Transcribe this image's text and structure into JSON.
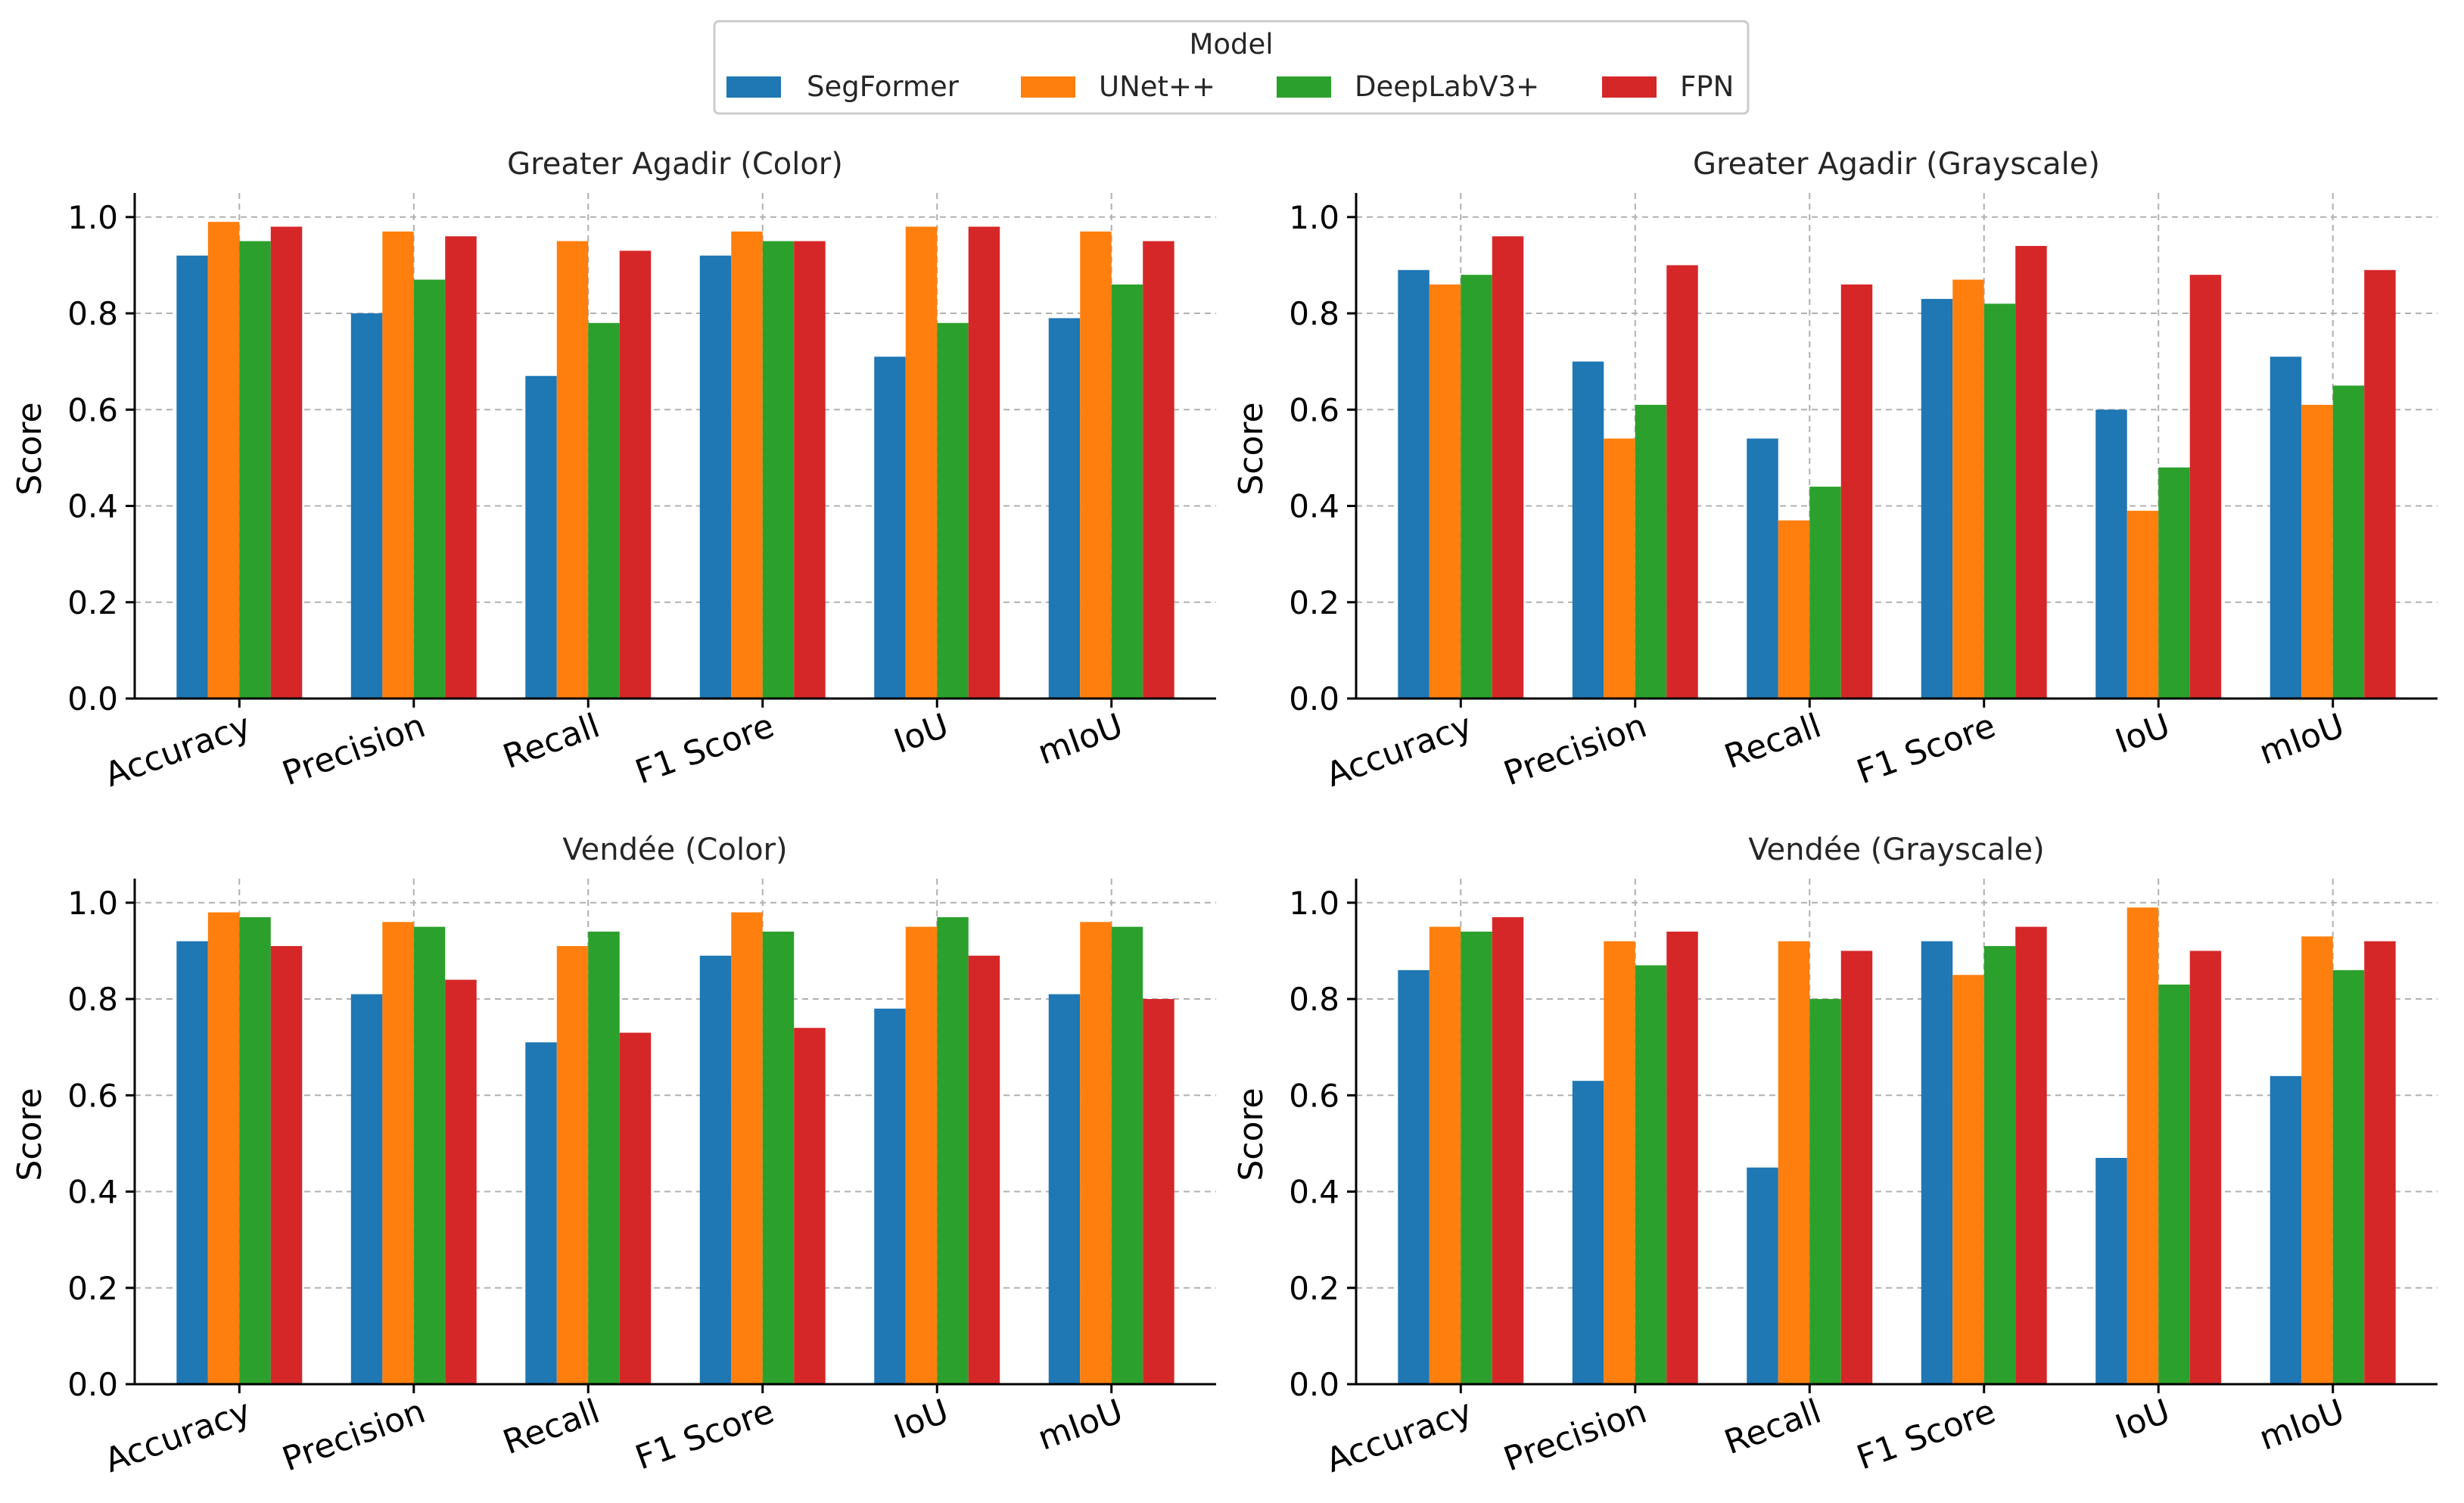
{
  "legend": {
    "title": "Model",
    "placement": "top-center",
    "series": [
      {
        "name": "SegFormer",
        "color": "#1f77b4"
      },
      {
        "name": "UNet++",
        "color": "#ff7f0e"
      },
      {
        "name": "DeepLabV3+",
        "color": "#2ca02c"
      },
      {
        "name": "FPN",
        "color": "#d62728"
      }
    ]
  },
  "chart_data": [
    {
      "type": "bar",
      "title": "Greater Agadir (Color)",
      "xlabel": "",
      "ylabel": "Score",
      "ylim": [
        0,
        1.05
      ],
      "yticks": [
        "0.0",
        "0.2",
        "0.4",
        "0.6",
        "0.8",
        "1.0"
      ],
      "grid": true,
      "categories": [
        "Accuracy",
        "Precision",
        "Recall",
        "F1 Score",
        "IoU",
        "mIoU"
      ],
      "series": [
        {
          "name": "SegFormer",
          "values": [
            0.92,
            0.8,
            0.67,
            0.92,
            0.71,
            0.79
          ]
        },
        {
          "name": "UNet++",
          "values": [
            0.99,
            0.97,
            0.95,
            0.97,
            0.98,
            0.97
          ]
        },
        {
          "name": "DeepLabV3+",
          "values": [
            0.95,
            0.87,
            0.78,
            0.95,
            0.78,
            0.86
          ]
        },
        {
          "name": "FPN",
          "values": [
            0.98,
            0.96,
            0.93,
            0.95,
            0.98,
            0.95
          ]
        }
      ]
    },
    {
      "type": "bar",
      "title": "Greater Agadir (Grayscale)",
      "xlabel": "",
      "ylabel": "Score",
      "ylim": [
        0,
        1.05
      ],
      "yticks": [
        "0.0",
        "0.2",
        "0.4",
        "0.6",
        "0.8",
        "1.0"
      ],
      "grid": true,
      "categories": [
        "Accuracy",
        "Precision",
        "Recall",
        "F1 Score",
        "IoU",
        "mIoU"
      ],
      "series": [
        {
          "name": "SegFormer",
          "values": [
            0.89,
            0.7,
            0.54,
            0.83,
            0.6,
            0.71
          ]
        },
        {
          "name": "UNet++",
          "values": [
            0.86,
            0.54,
            0.37,
            0.87,
            0.39,
            0.61
          ]
        },
        {
          "name": "DeepLabV3+",
          "values": [
            0.88,
            0.61,
            0.44,
            0.82,
            0.48,
            0.65
          ]
        },
        {
          "name": "FPN",
          "values": [
            0.96,
            0.9,
            0.86,
            0.94,
            0.88,
            0.89
          ]
        }
      ]
    },
    {
      "type": "bar",
      "title": "Vendée (Color)",
      "xlabel": "",
      "ylabel": "Score",
      "ylim": [
        0,
        1.05
      ],
      "yticks": [
        "0.0",
        "0.2",
        "0.4",
        "0.6",
        "0.8",
        "1.0"
      ],
      "grid": true,
      "categories": [
        "Accuracy",
        "Precision",
        "Recall",
        "F1 Score",
        "IoU",
        "mIoU"
      ],
      "series": [
        {
          "name": "SegFormer",
          "values": [
            0.92,
            0.81,
            0.71,
            0.89,
            0.78,
            0.81
          ]
        },
        {
          "name": "UNet++",
          "values": [
            0.98,
            0.96,
            0.91,
            0.98,
            0.95,
            0.96
          ]
        },
        {
          "name": "DeepLabV3+",
          "values": [
            0.97,
            0.95,
            0.94,
            0.94,
            0.97,
            0.95
          ]
        },
        {
          "name": "FPN",
          "values": [
            0.91,
            0.84,
            0.73,
            0.74,
            0.89,
            0.8
          ]
        }
      ]
    },
    {
      "type": "bar",
      "title": "Vendée (Grayscale)",
      "xlabel": "",
      "ylabel": "Score",
      "ylim": [
        0,
        1.05
      ],
      "yticks": [
        "0.0",
        "0.2",
        "0.4",
        "0.6",
        "0.8",
        "1.0"
      ],
      "grid": true,
      "categories": [
        "Accuracy",
        "Precision",
        "Recall",
        "F1 Score",
        "IoU",
        "mIoU"
      ],
      "series": [
        {
          "name": "SegFormer",
          "values": [
            0.86,
            0.63,
            0.45,
            0.92,
            0.47,
            0.64
          ]
        },
        {
          "name": "UNet++",
          "values": [
            0.95,
            0.92,
            0.92,
            0.85,
            0.99,
            0.93
          ]
        },
        {
          "name": "DeepLabV3+",
          "values": [
            0.94,
            0.87,
            0.8,
            0.91,
            0.83,
            0.86
          ]
        },
        {
          "name": "FPN",
          "values": [
            0.97,
            0.94,
            0.9,
            0.95,
            0.9,
            0.92
          ]
        }
      ]
    }
  ]
}
